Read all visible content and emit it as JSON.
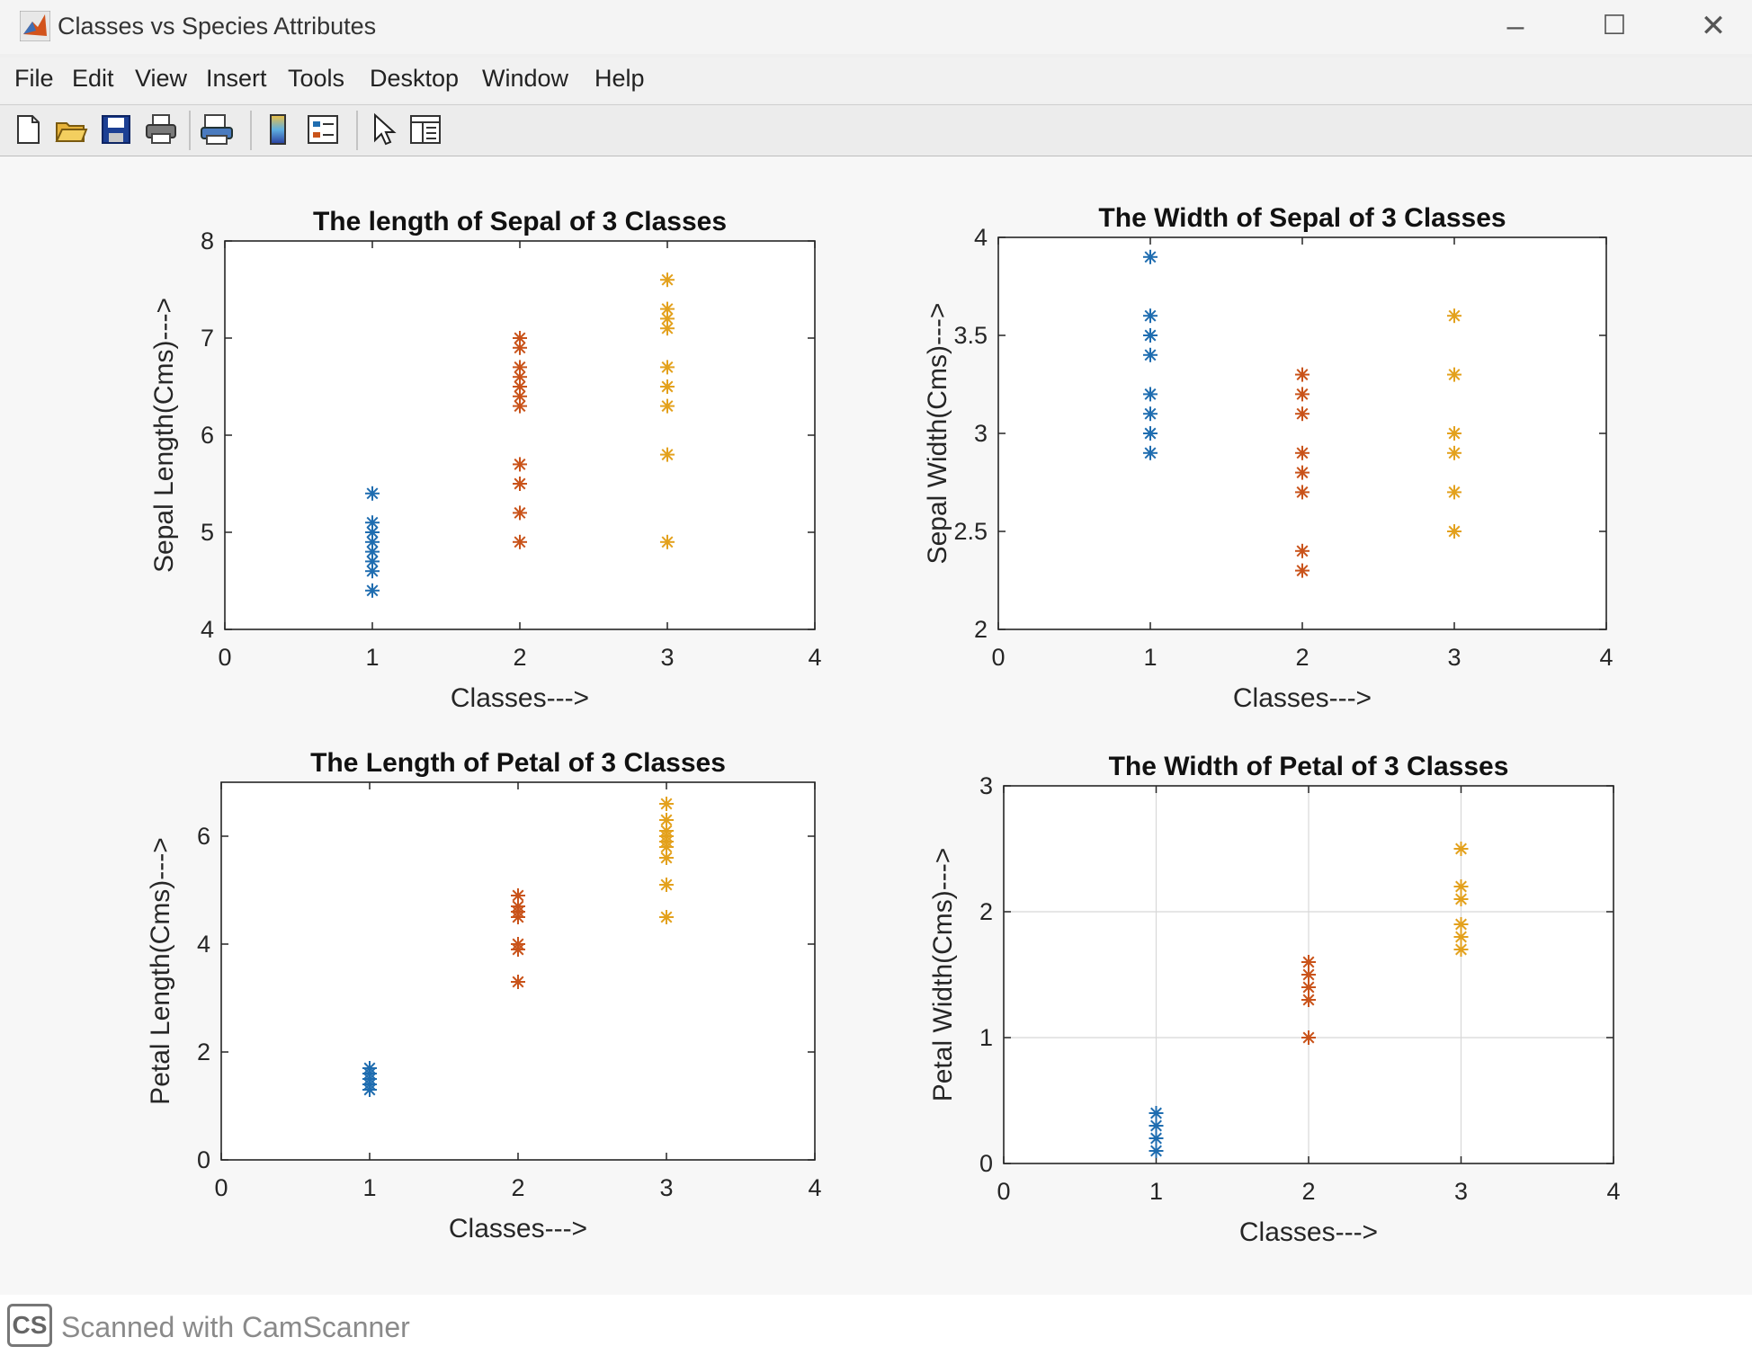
{
  "window": {
    "title": "Classes vs Species Attributes",
    "controls": {
      "minimize": "–",
      "maximize": "☐",
      "close": "✕"
    }
  },
  "menu": [
    "File",
    "Edit",
    "View",
    "Insert",
    "Tools",
    "Desktop",
    "Window",
    "Help"
  ],
  "toolbar": [
    "new-figure-icon",
    "open-file-icon",
    "save-icon",
    "print-icon",
    "print-preview-icon",
    "colorbar-icon",
    "legend-icon",
    "pointer-icon",
    "property-editor-icon"
  ],
  "colors": {
    "class1": "#1f6db0",
    "class2": "#c9531a",
    "class3": "#e3a11d"
  },
  "chart_data": [
    {
      "type": "scatter",
      "title": "The length of Sepal of 3 Classes",
      "xlabel": "Classes--->",
      "ylabel": "Sepal Length(Cms)--->",
      "xlim": [
        0,
        4
      ],
      "ylim": [
        4,
        8
      ],
      "xticks": [
        "0",
        "1",
        "2",
        "3",
        "4"
      ],
      "yticks": [
        "4",
        "5",
        "6",
        "7",
        "8"
      ],
      "grid": false,
      "marker": "*",
      "series": [
        {
          "x": 1,
          "values": [
            4.4,
            4.6,
            4.7,
            4.8,
            4.9,
            5.0,
            5.1,
            5.4
          ]
        },
        {
          "x": 2,
          "values": [
            4.9,
            5.2,
            5.5,
            5.7,
            6.3,
            6.4,
            6.5,
            6.6,
            6.7,
            6.9,
            7.0
          ]
        },
        {
          "x": 3,
          "values": [
            4.9,
            5.8,
            6.3,
            6.5,
            6.7,
            7.1,
            7.2,
            7.3,
            7.6
          ]
        }
      ]
    },
    {
      "type": "scatter",
      "title": "The Width of Sepal of 3 Classes",
      "xlabel": "Classes--->",
      "ylabel": "Sepal Width(Cms)--->",
      "xlim": [
        0,
        4
      ],
      "ylim": [
        2,
        4
      ],
      "xticks": [
        "0",
        "1",
        "2",
        "3",
        "4"
      ],
      "yticks": [
        "2",
        "2.5",
        "3",
        "3.5",
        "4"
      ],
      "grid": false,
      "marker": "*",
      "series": [
        {
          "x": 1,
          "values": [
            2.9,
            3.0,
            3.1,
            3.2,
            3.4,
            3.5,
            3.6,
            3.9
          ]
        },
        {
          "x": 2,
          "values": [
            2.3,
            2.4,
            2.7,
            2.8,
            2.9,
            3.1,
            3.2,
            3.3
          ]
        },
        {
          "x": 3,
          "values": [
            2.5,
            2.7,
            2.9,
            3.0,
            3.3,
            3.6
          ]
        }
      ]
    },
    {
      "type": "scatter",
      "title": "The Length of Petal of 3 Classes",
      "xlabel": "Classes--->",
      "ylabel": "Petal Length(Cms)--->",
      "xlim": [
        0,
        4
      ],
      "ylim": [
        0,
        7
      ],
      "xticks": [
        "0",
        "1",
        "2",
        "3",
        "4"
      ],
      "yticks": [
        "0",
        "2",
        "4",
        "6"
      ],
      "ytick_values": [
        0,
        2,
        4,
        6
      ],
      "grid": false,
      "marker": "*",
      "series": [
        {
          "x": 1,
          "values": [
            1.3,
            1.4,
            1.5,
            1.6,
            1.7
          ]
        },
        {
          "x": 2,
          "values": [
            3.3,
            3.9,
            4.0,
            4.5,
            4.6,
            4.7,
            4.9
          ]
        },
        {
          "x": 3,
          "values": [
            4.5,
            5.1,
            5.6,
            5.8,
            5.9,
            6.0,
            6.1,
            6.3,
            6.6
          ]
        }
      ]
    },
    {
      "type": "scatter",
      "title": "The Width of Petal of 3 Classes",
      "xlabel": "Classes--->",
      "ylabel": "Petal Width(Cms)--->",
      "xlim": [
        0,
        4
      ],
      "ylim": [
        0,
        3
      ],
      "xticks": [
        "0",
        "1",
        "2",
        "3",
        "4"
      ],
      "yticks": [
        "0",
        "1",
        "2",
        "3"
      ],
      "grid": true,
      "marker": "*",
      "series": [
        {
          "x": 1,
          "values": [
            0.1,
            0.2,
            0.3,
            0.4
          ]
        },
        {
          "x": 2,
          "values": [
            1.0,
            1.3,
            1.4,
            1.5,
            1.6
          ]
        },
        {
          "x": 3,
          "values": [
            1.7,
            1.8,
            1.9,
            2.1,
            2.2,
            2.5
          ]
        }
      ]
    }
  ],
  "footer": {
    "logo": "CS",
    "text": "Scanned with CamScanner"
  }
}
